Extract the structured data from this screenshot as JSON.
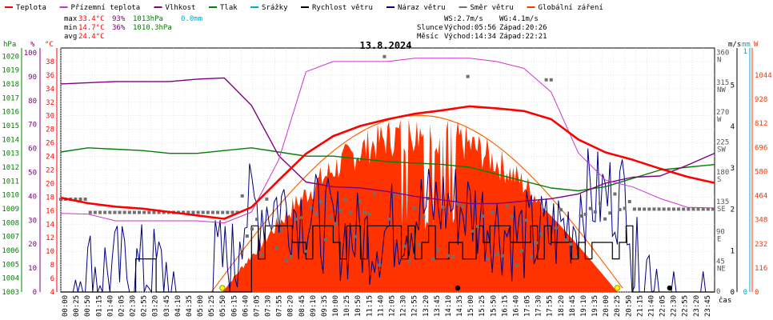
{
  "chart_data": {
    "type": "line",
    "title": "13.8.2024",
    "legend": [
      {
        "name": "Teplota",
        "color": "#ff0000"
      },
      {
        "name": "Přízemní teplota",
        "color": "#cc33cc"
      },
      {
        "name": "Vlhkost",
        "color": "#800080"
      },
      {
        "name": "Tlak",
        "color": "#008000"
      },
      {
        "name": "Srážky",
        "color": "#00aacc"
      },
      {
        "name": "Rychlost větru",
        "color": "#000000"
      },
      {
        "name": "Náraz větru",
        "color": "#000080"
      },
      {
        "name": "Směr větru",
        "color": "#707070"
      },
      {
        "name": "Globální záření",
        "color": "#ff3300"
      }
    ],
    "stats": {
      "max_label": "max",
      "max_temp": "33.4°C",
      "max_hum": "93%",
      "max_press": "1013hPa",
      "rain": "0.0mm",
      "min_label": "min",
      "min_temp": "14.7°C",
      "min_hum": "36%",
      "min_press": "1010.3hPa",
      "avg_label": "avg",
      "avg_temp": "24.4°C",
      "ws": "WS:2.7m/s",
      "wg": "WG:4.1m/s",
      "sun_label": "Slunce",
      "sun_rise": "Východ:05:56",
      "sun_set": "Západ:20:26",
      "moon_label": "Měsíc",
      "moon_rise": "Východ:14:34",
      "moon_set": "Západ:22:21"
    },
    "axes": {
      "hpa_title": "hPa",
      "pct_title": "%",
      "c_title": "°C",
      "ms_title": "m/s",
      "mm_title": "mm",
      "w_title": "W",
      "hpa_ticks": [
        1003,
        1004,
        1005,
        1006,
        1007,
        1008,
        1009,
        1010,
        1011,
        1012,
        1013,
        1014,
        1015,
        1016,
        1017,
        1018,
        1019,
        1020
      ],
      "pct_ticks": [
        0,
        10,
        20,
        30,
        40,
        50,
        60,
        70,
        80,
        90,
        100
      ],
      "c_ticks": [
        4,
        6,
        8,
        10,
        12,
        14,
        16,
        18,
        20,
        22,
        24,
        26,
        28,
        30,
        32,
        34,
        36,
        38
      ],
      "dir_ticks": [
        {
          "v": "0"
        },
        {
          "v": "45",
          "d": "NE"
        },
        {
          "v": "90",
          "d": "E"
        },
        {
          "v": "135",
          "d": "SE"
        },
        {
          "v": "180",
          "d": "S"
        },
        {
          "v": "225",
          "d": "SW"
        },
        {
          "v": "270",
          "d": "W"
        },
        {
          "v": "315",
          "d": "NW"
        },
        {
          "v": "360",
          "d": "N"
        }
      ],
      "ms_ticks": [
        0,
        1,
        2,
        3,
        4,
        5
      ],
      "mm_ticks": [
        0,
        1
      ],
      "w_ticks": [
        0,
        116,
        232,
        348,
        464,
        580,
        696,
        812,
        928,
        1044
      ],
      "x_label": "čas",
      "x_ticks": [
        "00:00",
        "00:25",
        "00:50",
        "01:15",
        "01:40",
        "02:05",
        "02:30",
        "02:55",
        "03:20",
        "03:45",
        "04:10",
        "04:35",
        "05:00",
        "05:25",
        "05:50",
        "06:15",
        "06:40",
        "07:05",
        "07:30",
        "07:55",
        "08:20",
        "08:45",
        "09:10",
        "09:35",
        "10:00",
        "10:25",
        "10:50",
        "11:15",
        "11:40",
        "12:05",
        "12:30",
        "12:55",
        "13:20",
        "13:45",
        "14:10",
        "14:35",
        "15:00",
        "15:25",
        "15:50",
        "16:15",
        "16:40",
        "17:05",
        "17:30",
        "17:55",
        "18:20",
        "18:45",
        "19:10",
        "19:35",
        "20:00",
        "20:25",
        "20:50",
        "21:15",
        "21:40",
        "22:05",
        "22:30",
        "22:55",
        "23:20",
        "23:45"
      ]
    },
    "x_hours": [
      0,
      1,
      2,
      3,
      4,
      5,
      6,
      7,
      8,
      9,
      10,
      11,
      12,
      13,
      14,
      15,
      16,
      17,
      18,
      19,
      20,
      21,
      22,
      23,
      24
    ],
    "temperature_c": [
      17.9,
      17.1,
      16.6,
      16.3,
      15.8,
      15.3,
      14.8,
      16.5,
      20.5,
      24.4,
      27.0,
      28.5,
      29.5,
      30.3,
      30.8,
      31.4,
      31.1,
      30.7,
      29.5,
      26.5,
      24.6,
      23.5,
      22.2,
      21.0,
      20.1
    ],
    "ground_temp_c": [
      15.6,
      15.5,
      14.5,
      14.5,
      14.5,
      14.5,
      14.2,
      15.8,
      23.5,
      36.5,
      38.0,
      38.0,
      38.0,
      38.5,
      38.5,
      38.5,
      38.0,
      37.0,
      33.5,
      24.5,
      20.5,
      19.5,
      17.8,
      16.5,
      16.4
    ],
    "humidity_pct": [
      87,
      87.5,
      88,
      88,
      88,
      89,
      89.5,
      78,
      57,
      46,
      44,
      43.5,
      42,
      40,
      38.5,
      37,
      37,
      38,
      39,
      41,
      45.5,
      48,
      48.5,
      53,
      58
    ],
    "pressure_hpa": [
      1013.1,
      1013.4,
      1013.3,
      1013.2,
      1013.0,
      1013.0,
      1013.2,
      1013.4,
      1013.1,
      1012.8,
      1012.8,
      1012.6,
      1012.4,
      1012.3,
      1012.2,
      1012.0,
      1011.5,
      1011.0,
      1010.5,
      1010.3,
      1010.6,
      1011.2,
      1011.8,
      1012.0,
      1012.2
    ],
    "radiation_peak_w": 810,
    "sunrise_h": 5.93,
    "sunset_h": 20.43
  }
}
